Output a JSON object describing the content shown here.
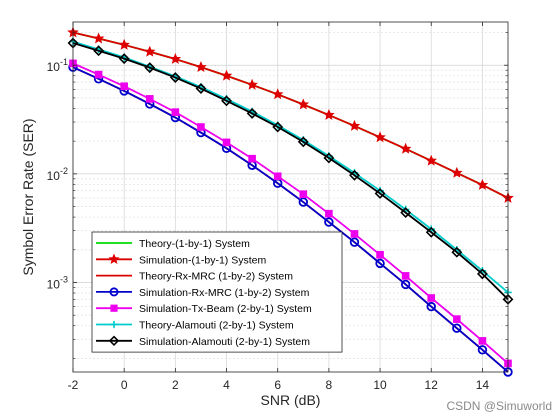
{
  "chart_data": {
    "type": "line",
    "xlabel": "SNR (dB)",
    "ylabel": "Symbol Error Rate (SER)",
    "xlim": [
      -2,
      15
    ],
    "ylim": [
      0.00015,
      0.25
    ],
    "yscale": "log",
    "grid": true,
    "legend_position": "bottom-left",
    "x_ticks": [
      -2,
      0,
      2,
      4,
      6,
      8,
      10,
      12,
      14
    ],
    "x_tick_labels": [
      "-2",
      "0",
      "2",
      "4",
      "6",
      "8",
      "10",
      "12",
      "14"
    ],
    "y_ticks": [
      0.001,
      0.01,
      0.1
    ],
    "y_tick_labels": [
      {
        "base": "10",
        "exp": "-3"
      },
      {
        "base": "10",
        "exp": "-2"
      },
      {
        "base": "10",
        "exp": "-1"
      }
    ],
    "x": [
      -2,
      -1,
      0,
      1,
      2,
      3,
      4,
      5,
      6,
      7,
      8,
      9,
      10,
      11,
      12,
      13,
      14,
      15
    ],
    "series": [
      {
        "name": "Theory-(1-by-1) System",
        "color": "#00dd00",
        "marker": "none",
        "values": [
          0.2,
          0.176,
          0.154,
          0.133,
          0.114,
          0.096,
          0.08,
          0.066,
          0.054,
          0.0435,
          0.0348,
          0.0276,
          0.0217,
          0.017,
          0.0132,
          0.0102,
          0.0079,
          0.006
        ]
      },
      {
        "name": "Simulation-(1-by-1) System",
        "color": "#dd0000",
        "marker": "star",
        "values": [
          0.2,
          0.176,
          0.154,
          0.133,
          0.114,
          0.096,
          0.08,
          0.066,
          0.054,
          0.0435,
          0.0348,
          0.0276,
          0.0217,
          0.017,
          0.0132,
          0.0102,
          0.0079,
          0.006
        ]
      },
      {
        "name": "Theory-Rx-MRC (1-by-2) System",
        "color": "#dd0000",
        "marker": "none",
        "values": [
          0.096,
          0.075,
          0.058,
          0.044,
          0.033,
          0.024,
          0.0172,
          0.012,
          0.0082,
          0.0055,
          0.0036,
          0.00235,
          0.0015,
          0.00096,
          0.0006,
          0.00038,
          0.00024,
          0.00015
        ]
      },
      {
        "name": "Simulation-Rx-MRC (1-by-2) System",
        "color": "#0000cc",
        "marker": "circle",
        "values": [
          0.096,
          0.075,
          0.058,
          0.044,
          0.033,
          0.024,
          0.0172,
          0.012,
          0.0082,
          0.0055,
          0.0036,
          0.00235,
          0.0015,
          0.00096,
          0.0006,
          0.00038,
          0.00024,
          0.00015
        ]
      },
      {
        "name": "Simulation-Tx-Beam (2-by-1) System",
        "color": "#ee00ee",
        "marker": "square",
        "values": [
          0.104,
          0.082,
          0.064,
          0.049,
          0.037,
          0.027,
          0.0195,
          0.0138,
          0.0095,
          0.0065,
          0.0043,
          0.0028,
          0.0018,
          0.00115,
          0.00072,
          0.00046,
          0.00029,
          0.00018
        ]
      },
      {
        "name": "Theory-Alamouti (2-by-1) System",
        "color": "#00cccc",
        "marker": "plus",
        "values": [
          0.165,
          0.14,
          0.118,
          0.097,
          0.079,
          0.063,
          0.049,
          0.0375,
          0.028,
          0.0205,
          0.0146,
          0.0102,
          0.007,
          0.0047,
          0.0031,
          0.002,
          0.00128,
          0.00081
        ]
      },
      {
        "name": "Simulation-Alamouti (2-by-1) System",
        "color": "#000000",
        "marker": "diamond",
        "values": [
          0.16,
          0.136,
          0.115,
          0.095,
          0.077,
          0.061,
          0.047,
          0.036,
          0.027,
          0.0197,
          0.014,
          0.0097,
          0.0066,
          0.0044,
          0.0029,
          0.0019,
          0.0012,
          0.0007
        ]
      }
    ]
  },
  "watermark": "CSDN @Simuworld"
}
